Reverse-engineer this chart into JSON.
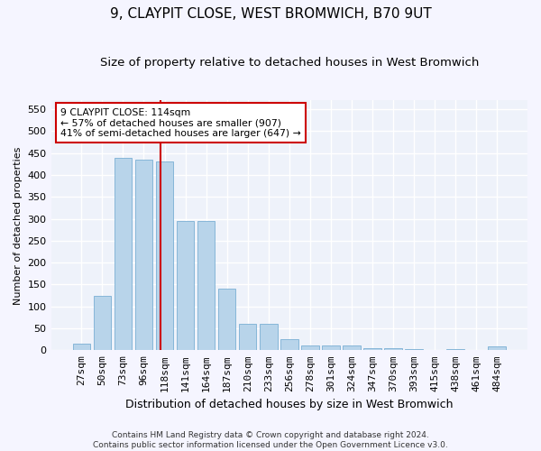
{
  "title": "9, CLAYPIT CLOSE, WEST BROMWICH, B70 9UT",
  "subtitle": "Size of property relative to detached houses in West Bromwich",
  "xlabel": "Distribution of detached houses by size in West Bromwich",
  "ylabel": "Number of detached properties",
  "footnote": "Contains HM Land Registry data © Crown copyright and database right 2024.\nContains public sector information licensed under the Open Government Licence v3.0.",
  "bar_labels": [
    "27sqm",
    "50sqm",
    "73sqm",
    "96sqm",
    "118sqm",
    "141sqm",
    "164sqm",
    "187sqm",
    "210sqm",
    "233sqm",
    "256sqm",
    "278sqm",
    "301sqm",
    "324sqm",
    "347sqm",
    "370sqm",
    "393sqm",
    "415sqm",
    "438sqm",
    "461sqm",
    "484sqm"
  ],
  "bar_values": [
    15,
    125,
    440,
    435,
    430,
    295,
    295,
    140,
    60,
    60,
    25,
    10,
    10,
    10,
    5,
    5,
    3,
    0,
    3,
    0,
    8
  ],
  "bar_color": "#b8d4ea",
  "bar_edge_color": "#7aafd4",
  "annotation_text_line1": "9 CLAYPIT CLOSE: 114sqm",
  "annotation_text_line2": "← 57% of detached houses are smaller (907)",
  "annotation_text_line3": "41% of semi-detached houses are larger (647) →",
  "annotation_box_color": "#ffffff",
  "annotation_box_edge": "#cc0000",
  "vline_color": "#cc0000",
  "vline_x_index": 3.82,
  "ylim": [
    0,
    570
  ],
  "yticks": [
    0,
    50,
    100,
    150,
    200,
    250,
    300,
    350,
    400,
    450,
    500,
    550
  ],
  "background_color": "#eef2fa",
  "grid_color": "#ffffff",
  "title_fontsize": 11,
  "subtitle_fontsize": 9.5,
  "xlabel_fontsize": 9,
  "ylabel_fontsize": 8,
  "tick_fontsize": 8,
  "footnote_fontsize": 6.5
}
